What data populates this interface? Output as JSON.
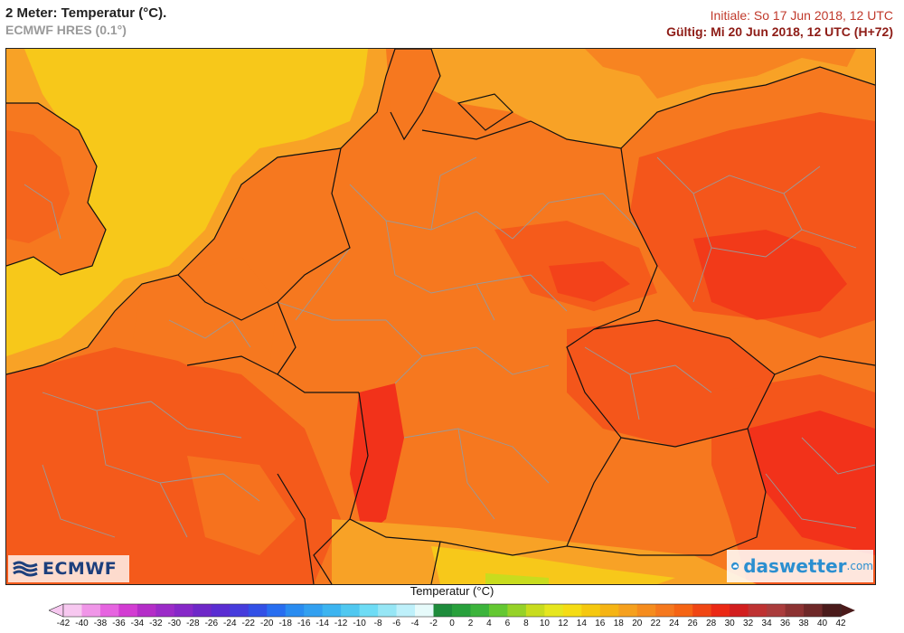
{
  "header": {
    "title": "2 Meter: Temperatur (°C).",
    "model": "ECMWF HRES (0.1°)",
    "init": "Initiale: So 17 Jun 2018, 12 UTC",
    "valid": "Gültig: Mi 20 Jun 2018, 12 UTC (H+72)"
  },
  "logos": {
    "ecmwf": "ECMWF",
    "daswetter_name": "daswetter",
    "daswetter_suffix": ".com",
    "ecmwf_icon": "ecmwf-wave-icon",
    "daswetter_icon": "cloud-globe-icon"
  },
  "legend": {
    "title": "Temperatur (°C)",
    "ticks": [
      "-42",
      "-40",
      "-38",
      "-36",
      "-34",
      "-32",
      "-30",
      "-28",
      "-26",
      "-24",
      "-22",
      "-20",
      "-18",
      "-16",
      "-14",
      "-12",
      "-10",
      "-8",
      "-6",
      "-4",
      "-2",
      "0",
      "2",
      "4",
      "6",
      "8",
      "10",
      "12",
      "14",
      "16",
      "18",
      "20",
      "22",
      "24",
      "26",
      "28",
      "30",
      "32",
      "34",
      "36",
      "38",
      "40",
      "42"
    ],
    "colors": [
      "#f7c8f0",
      "#f096e8",
      "#e664e0",
      "#d23cd2",
      "#b42dc8",
      "#9b2bc8",
      "#8628c8",
      "#6e28c8",
      "#5a2dd2",
      "#463cdc",
      "#3250e6",
      "#286ef0",
      "#2a8cf0",
      "#32a0f0",
      "#3cb4f0",
      "#50c8f0",
      "#6edcf5",
      "#96e6f5",
      "#bef0fa",
      "#e6fafa",
      "#1e8c3c",
      "#28a03c",
      "#3cb43c",
      "#64c832",
      "#96d228",
      "#c8dc1e",
      "#e6e61e",
      "#f5dc14",
      "#f5c80f",
      "#f5b414",
      "#f5a01e",
      "#f58c1e",
      "#f5781e",
      "#f56414",
      "#f04614",
      "#eb2814",
      "#d21e1e",
      "#be3232",
      "#aa3c3c",
      "#8c3232",
      "#6e2828",
      "#4a1a1a"
    ]
  },
  "map_colors": {
    "sea_20": "#f7c81a",
    "t22": "#f8a226",
    "t24": "#f6781f",
    "t26": "#f4561b",
    "t28": "#f2321a",
    "border_country": "#111111",
    "border_region": "#9a9a9a"
  }
}
